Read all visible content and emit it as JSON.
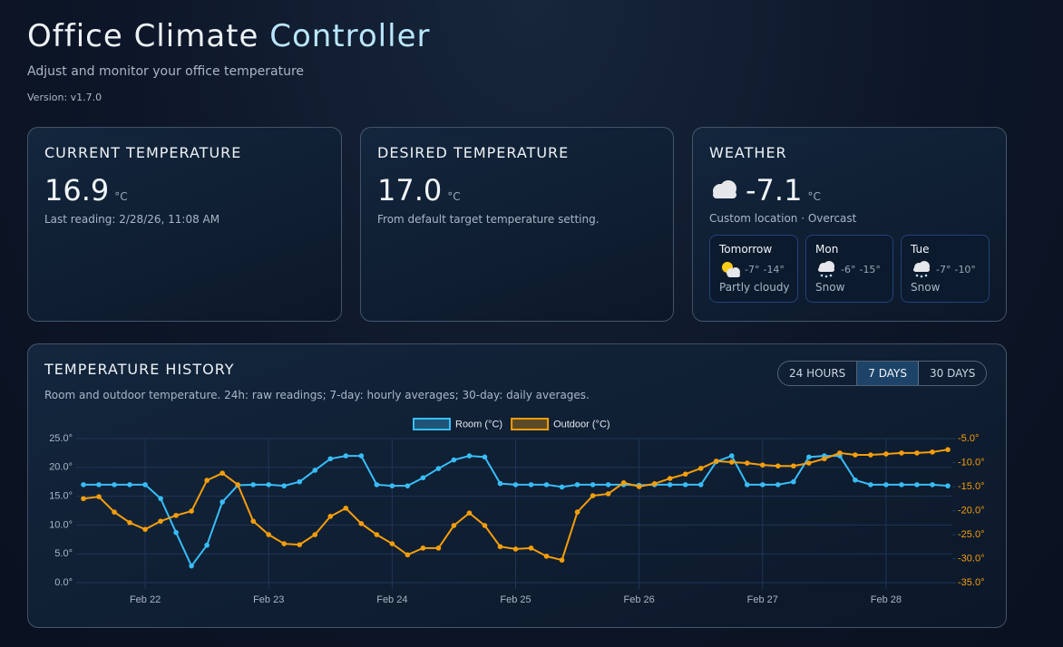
{
  "header": {
    "title": [
      "Office Climate",
      "Controller"
    ],
    "subtitle": "Adjust and monitor your office temperature",
    "version": "Version: v1.7.0"
  },
  "current": {
    "heading": "CURRENT TEMPERATURE",
    "value": "16.9",
    "unit": "°C",
    "note": "Last reading: 2/28/26, 11:08 AM"
  },
  "desired": {
    "heading": "DESIRED TEMPERATURE",
    "value": "17.0",
    "unit": "°C",
    "note": "From default target temperature setting."
  },
  "weather": {
    "heading": "WEATHER",
    "value": "-7.1",
    "unit": "°C",
    "note": "Custom location · Overcast",
    "forecast": [
      {
        "day": "Tomorrow",
        "high": "-7°",
        "low": "-14°",
        "condition": "Partly cloudy"
      },
      {
        "day": "Mon",
        "high": "-6°",
        "low": "-15°",
        "condition": "Snow"
      },
      {
        "day": "Tue",
        "high": "-7°",
        "low": "-10°",
        "condition": "Snow"
      }
    ]
  },
  "history": {
    "heading": "TEMPERATURE HISTORY",
    "subtitle": "Room and outdoor temperature. 24h: raw readings; 7-day: hourly averages; 30-day: daily averages.",
    "ranges": [
      "24 HOURS",
      "7 DAYS",
      "30 DAYS"
    ]
  },
  "chart_data": {
    "type": "line",
    "categories": [
      null,
      null,
      null,
      null,
      "Feb 22",
      null,
      null,
      null,
      null,
      null,
      null,
      null,
      "Feb 23",
      null,
      null,
      null,
      null,
      null,
      null,
      null,
      "Feb 24",
      null,
      null,
      null,
      null,
      null,
      null,
      null,
      "Feb 25",
      null,
      null,
      null,
      null,
      null,
      null,
      null,
      "Feb 26",
      null,
      null,
      null,
      null,
      null,
      null,
      null,
      "Feb 27",
      null,
      null,
      null,
      null,
      null,
      null,
      null,
      "Feb 28",
      null,
      null,
      null,
      null
    ],
    "series": [
      {
        "name": "Room (°C)",
        "color": "#38bdf8",
        "values": [
          17,
          17,
          17,
          17,
          17,
          14.6,
          8.7,
          2.9,
          6.5,
          14,
          16.9,
          17,
          17,
          16.8,
          17.5,
          19.5,
          21.5,
          22,
          22,
          17,
          16.8,
          16.8,
          18.2,
          19.8,
          21.3,
          22,
          21.8,
          17.2,
          17,
          17,
          17,
          16.6,
          17,
          17,
          17,
          17,
          16.9,
          17,
          17,
          17,
          17,
          21,
          22,
          17,
          17,
          17,
          17.5,
          21.8,
          22,
          22,
          17.8,
          17,
          17,
          17,
          17,
          17,
          16.8
        ]
      },
      {
        "name": "Outdoor (°C)",
        "color": "#f59e0b",
        "axis": "y2",
        "values": [
          -17.5,
          -17.1,
          -20.3,
          -22.5,
          -23.9,
          -22.2,
          -21,
          -20.1,
          -13.7,
          -12.2,
          -14.6,
          -22.2,
          -25,
          -26.9,
          -27.1,
          -25,
          -21.2,
          -19.5,
          -22.7,
          -25,
          -26.9,
          -29.2,
          -27.8,
          -27.8,
          -23.1,
          -20.5,
          -23.1,
          -27.5,
          -28,
          -27.8,
          -29.5,
          -30.3,
          -20.3,
          -16.9,
          -16.5,
          -14.2,
          -15,
          -14.4,
          -13.3,
          -12.4,
          -11.2,
          -9.7,
          -9.9,
          -10.1,
          -10.5,
          -10.7,
          -10.7,
          -10.1,
          -9.2,
          -8,
          -8.4,
          -8.4,
          -8.2,
          -8,
          -8,
          -7.8,
          -7.3
        ]
      }
    ],
    "ylim": [
      0,
      25
    ],
    "yticks": [
      {
        "value": 0,
        "label": "0.0°"
      },
      {
        "value": 5,
        "label": "5.0°"
      },
      {
        "value": 10,
        "label": "10.0°"
      },
      {
        "value": 15,
        "label": "15.0°"
      },
      {
        "value": 20,
        "label": "20.0°"
      },
      {
        "value": 25,
        "label": "25.0°"
      }
    ],
    "y2lim": [
      -35,
      -5
    ],
    "y2ticks": [
      {
        "value": -35,
        "label": "-35.0°"
      },
      {
        "value": -30,
        "label": "-30.0°"
      },
      {
        "value": -25,
        "label": "-25.0°"
      },
      {
        "value": -20,
        "label": "-20.0°"
      },
      {
        "value": -15,
        "label": "-15.0°"
      },
      {
        "value": -10,
        "label": "-10.0°"
      },
      {
        "value": -5,
        "label": "-5.0°"
      }
    ],
    "grid": true
  }
}
